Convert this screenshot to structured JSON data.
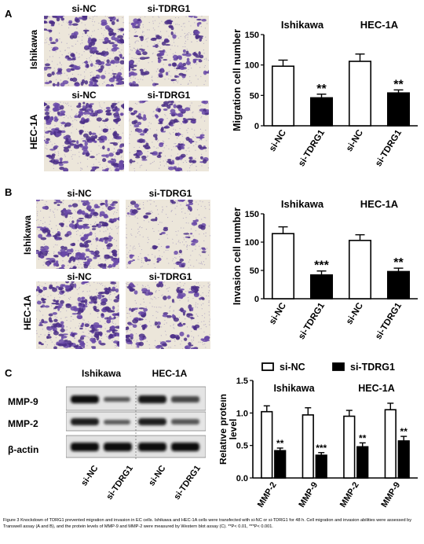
{
  "panels": {
    "A": {
      "letter": "A",
      "col_labels": [
        "si-NC",
        "si-TDRG1"
      ],
      "row_labels": [
        "Ishikawa",
        "HEC-1A"
      ],
      "micro_row2_labels": [
        "si-NC",
        "si-TDRG1"
      ]
    },
    "B": {
      "letter": "B",
      "col_labels": [
        "si-NC",
        "si-TDRG1"
      ],
      "row_labels": [
        "Ishikawa",
        "HEC-1A"
      ],
      "micro_row2_labels": [
        "si-NC",
        "si-TDRG1"
      ]
    },
    "C": {
      "letter": "C",
      "blot_cell_lines": [
        "Ishikawa",
        "HEC-1A"
      ],
      "blot_proteins": [
        "MMP-9",
        "MMP-2",
        "β-actin"
      ],
      "blot_lanes": [
        "si-NC",
        "si-TDRG1",
        "si-NC",
        "si-TDRG1"
      ]
    }
  },
  "chart_data": [
    {
      "type": "bar",
      "panel": "A",
      "ylabel": "Migration cell number",
      "ylim": [
        0,
        150
      ],
      "yticks": [
        0,
        50,
        100,
        150
      ],
      "group_labels": [
        "Ishikawa",
        "HEC-1A"
      ],
      "categories": [
        "si-NC",
        "si-TDRG1",
        "si-NC",
        "si-TDRG1"
      ],
      "values": [
        98,
        46,
        106,
        54
      ],
      "errors": [
        10,
        6,
        12,
        5
      ],
      "fills": [
        "white",
        "black",
        "white",
        "black"
      ],
      "annotations": [
        "",
        "**",
        "",
        "**"
      ]
    },
    {
      "type": "bar",
      "panel": "B",
      "ylabel": "Invasion cell number",
      "ylim": [
        0,
        150
      ],
      "yticks": [
        0,
        50,
        100,
        150
      ],
      "group_labels": [
        "Ishikawa",
        "HEC-1A"
      ],
      "categories": [
        "si-NC",
        "si-TDRG1",
        "si-NC",
        "si-TDRG1"
      ],
      "values": [
        115,
        42,
        103,
        48
      ],
      "errors": [
        12,
        7,
        10,
        6
      ],
      "fills": [
        "white",
        "black",
        "white",
        "black"
      ],
      "annotations": [
        "",
        "***",
        "",
        "**"
      ]
    },
    {
      "type": "bar",
      "panel": "C",
      "ylabel": "Relative protein level",
      "ylim": [
        0,
        1.5
      ],
      "yticks": [
        0.0,
        0.5,
        1.0,
        1.5
      ],
      "group_labels": [
        "Ishikawa",
        "HEC-1A"
      ],
      "categories": [
        "MMP-2",
        "MMP-9",
        "MMP-2",
        "MMP-9"
      ],
      "series": [
        {
          "name": "si-NC",
          "values": [
            1.02,
            0.97,
            0.95,
            1.05
          ],
          "errors": [
            0.09,
            0.11,
            0.09,
            0.1
          ],
          "annotations": [
            "",
            "",
            "",
            ""
          ]
        },
        {
          "name": "si-TDRG1",
          "values": [
            0.42,
            0.35,
            0.48,
            0.57
          ],
          "errors": [
            0.04,
            0.04,
            0.06,
            0.07
          ],
          "annotations": [
            "**",
            "***",
            "**",
            "**"
          ]
        }
      ],
      "legend": "top"
    }
  ],
  "caption": "Figure 3 Knockdown of TDRG1 prevented migration and invasion in EC cells. Ishikawa and HEC-1A cells were transfected with si-NC or si-TDRG1 for 48 h. Cell migration and invasion abilities were assessed by Transwell assay (A and B), and the protein levels of MMP-9 and MMP-2 were measured by Western blot assay (C). **P< 0.01, ***P< 0.001."
}
